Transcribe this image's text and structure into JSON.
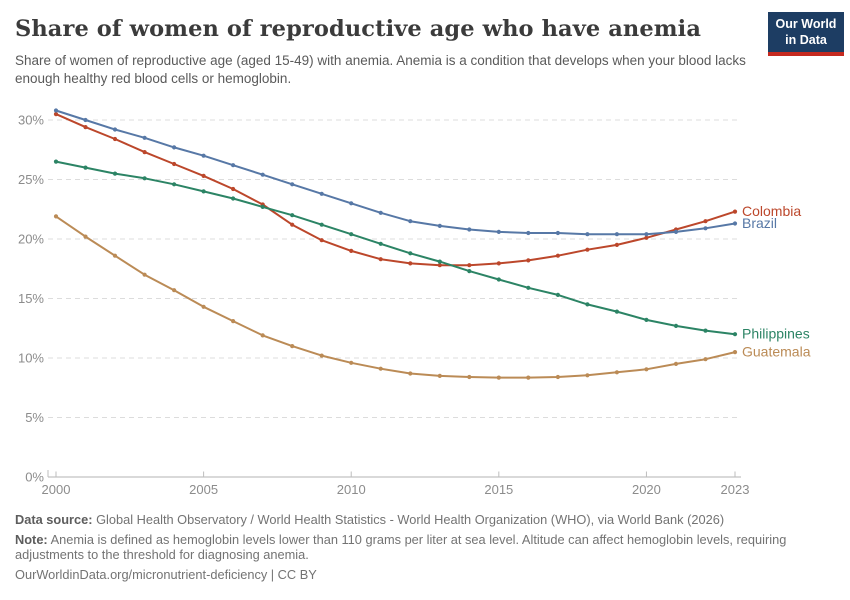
{
  "header": {
    "title": "Share of women of reproductive age who have anemia",
    "subtitle": "Share of women of reproductive age (aged 15-49) with anemia. Anemia is a condition that develops when your blood lacks enough healthy red blood cells or hemoglobin.",
    "logo": {
      "line1": "Our World",
      "line2": "in Data",
      "bg_color": "#1d3d63",
      "accent_color": "#c5291f"
    }
  },
  "chart_data": {
    "type": "line",
    "title": "Share of women of reproductive age who have anemia",
    "xlabel": "",
    "ylabel": "",
    "x": [
      2000,
      2001,
      2002,
      2003,
      2004,
      2005,
      2006,
      2007,
      2008,
      2009,
      2010,
      2011,
      2012,
      2013,
      2014,
      2015,
      2016,
      2017,
      2018,
      2019,
      2020,
      2021,
      2022,
      2023
    ],
    "series": [
      {
        "name": "Colombia",
        "color": "#bc472b",
        "values": [
          30.5,
          29.4,
          28.4,
          27.3,
          26.3,
          25.3,
          24.2,
          22.9,
          21.2,
          19.9,
          19.0,
          18.3,
          17.95,
          17.8,
          17.8,
          17.95,
          18.2,
          18.6,
          19.1,
          19.5,
          20.1,
          20.8,
          21.5,
          22.3
        ]
      },
      {
        "name": "Brazil",
        "color": "#5778a6",
        "values": [
          30.8,
          30.0,
          29.2,
          28.5,
          27.7,
          27.0,
          26.2,
          25.4,
          24.6,
          23.8,
          23.0,
          22.2,
          21.5,
          21.1,
          20.8,
          20.6,
          20.5,
          20.5,
          20.4,
          20.4,
          20.4,
          20.6,
          20.9,
          21.3
        ]
      },
      {
        "name": "Philippines",
        "color": "#2c8465",
        "values": [
          26.5,
          26.0,
          25.5,
          25.1,
          24.6,
          24.0,
          23.4,
          22.7,
          22.0,
          21.2,
          20.4,
          19.6,
          18.8,
          18.1,
          17.3,
          16.6,
          15.9,
          15.3,
          14.5,
          13.9,
          13.2,
          12.7,
          12.3,
          12.0
        ]
      },
      {
        "name": "Guatemala",
        "color": "#bb8b56",
        "values": [
          21.9,
          20.2,
          18.6,
          17.0,
          15.7,
          14.3,
          13.1,
          11.9,
          11.0,
          10.2,
          9.6,
          9.1,
          8.7,
          8.5,
          8.4,
          8.35,
          8.35,
          8.4,
          8.55,
          8.8,
          9.05,
          9.5,
          9.9,
          10.5
        ]
      }
    ],
    "ylim": [
      0,
      30
    ],
    "yticks": [
      0,
      5,
      10,
      15,
      20,
      25,
      30
    ],
    "ytick_format": "{v}%",
    "xticks": [
      2000,
      2005,
      2010,
      2015,
      2020,
      2023
    ],
    "grid": "horizontal-dashed",
    "legend_position": "line-end-labels-right",
    "styles": {
      "grid_color": "#dcdcdc",
      "axis_color": "#b3b3b3",
      "tick_color": "#bdbdbd",
      "tick_label_color": "#8c8c8c"
    }
  },
  "footer": {
    "data_source_label": "Data source:",
    "data_source_text": "Global Health Observatory / World Health Statistics - World Health Organization (WHO), via World Bank (2026)",
    "note_label": "Note:",
    "note_text": "Anemia is defined as hemoglobin levels lower than 110 grams per liter at sea level. Altitude can affect hemoglobin levels, requiring adjustments to the threshold for diagnosing anemia.",
    "license_text": "OurWorldinData.org/micronutrient-deficiency | CC BY"
  }
}
